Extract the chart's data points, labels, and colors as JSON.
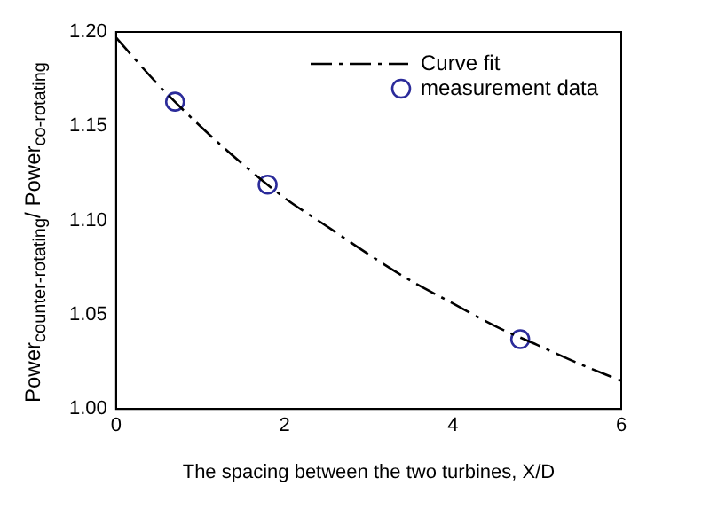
{
  "chart_data": {
    "type": "scatter",
    "xlabel": "The spacing between the two turbines, X/D",
    "ylabel": "Power$_{counter-rotating}$/ Power$_{co-rotating}$",
    "xlim": [
      0,
      6
    ],
    "xticks": [
      0,
      2,
      4,
      6
    ],
    "ylim": [
      1.0,
      1.2
    ],
    "yticks": [
      {
        "value": 1.0,
        "label": "1.00"
      },
      {
        "value": 1.05,
        "label": "1.05"
      },
      {
        "value": 1.1,
        "label": "1.10"
      },
      {
        "value": 1.15,
        "label": "1.15"
      },
      {
        "value": 1.2,
        "label": "1.20"
      }
    ],
    "grid": false,
    "legend": "top right",
    "series": [
      {
        "name": "Curve fit",
        "type": "line",
        "color": "#000000",
        "line_style": "dashed",
        "marker": "none",
        "x": [
          0,
          0.5,
          1,
          1.5,
          2,
          2.5,
          3,
          3.5,
          4,
          4.5,
          5,
          5.5,
          6
        ],
        "values": [
          1.197,
          1.172,
          1.15,
          1.13,
          1.112,
          1.097,
          1.082,
          1.068,
          1.056,
          1.044,
          1.034,
          1.024,
          1.015
        ]
      },
      {
        "name": "measurement data",
        "type": "scatter",
        "color": "#2b2b9a",
        "marker": "circle",
        "x": [
          0.7,
          1.8,
          4.8
        ],
        "values": [
          1.163,
          1.119,
          1.037
        ]
      }
    ]
  }
}
